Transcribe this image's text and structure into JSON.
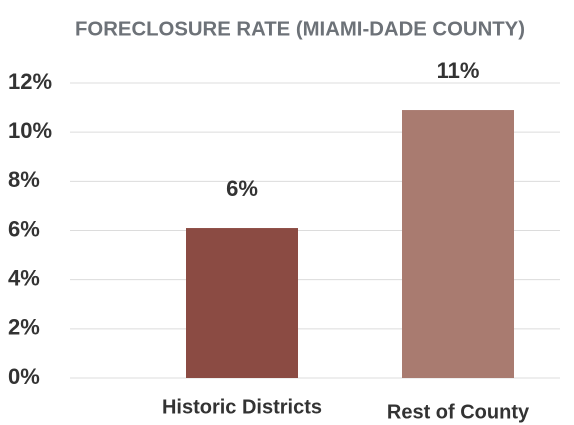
{
  "chart_data": {
    "type": "bar",
    "title": "FORECLOSURE RATE (MIAMI-DADE COUNTY)",
    "categories": [
      "Historic Districts",
      "Rest of County"
    ],
    "values": [
      6.1,
      10.9
    ],
    "value_labels": [
      "6%",
      "11%"
    ],
    "colors": [
      "#8b4b43",
      "#a97b70"
    ],
    "ylim": [
      0,
      12
    ],
    "yticks": [
      {
        "value": 0,
        "label": "0%"
      },
      {
        "value": 2,
        "label": "2%"
      },
      {
        "value": 4,
        "label": "4%"
      },
      {
        "value": 6,
        "label": "6%"
      },
      {
        "value": 8,
        "label": "8%"
      },
      {
        "value": 10,
        "label": "10%"
      },
      {
        "value": 12,
        "label": "12%"
      }
    ],
    "grid": true
  }
}
